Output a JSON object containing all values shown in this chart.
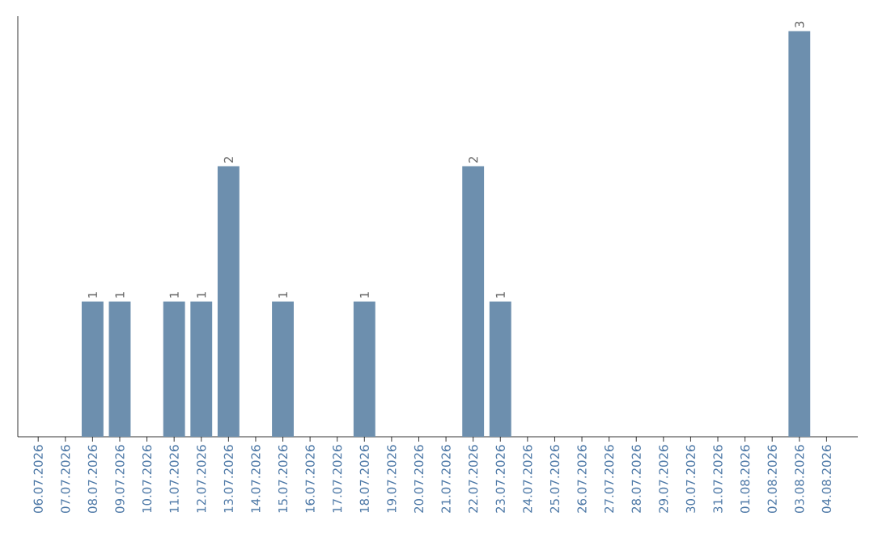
{
  "chart_data": {
    "type": "bar",
    "categories": [
      "06.07.2026",
      "07.07.2026",
      "08.07.2026",
      "09.07.2026",
      "10.07.2026",
      "11.07.2026",
      "12.07.2026",
      "13.07.2026",
      "14.07.2026",
      "15.07.2026",
      "16.07.2026",
      "17.07.2026",
      "18.07.2026",
      "19.07.2026",
      "20.07.2026",
      "21.07.2026",
      "22.07.2026",
      "23.07.2026",
      "24.07.2026",
      "25.07.2026",
      "26.07.2026",
      "27.07.2026",
      "28.07.2026",
      "29.07.2026",
      "30.07.2026",
      "31.07.2026",
      "01.08.2026",
      "02.08.2026",
      "03.08.2026",
      "04.08.2026"
    ],
    "values": [
      0,
      0,
      1,
      1,
      0,
      1,
      1,
      2,
      0,
      1,
      0,
      0,
      1,
      0,
      0,
      0,
      2,
      1,
      0,
      0,
      0,
      0,
      0,
      0,
      0,
      0,
      0,
      0,
      3,
      0
    ],
    "value_labels": [
      null,
      null,
      "1",
      "1",
      null,
      "1",
      "1",
      "2",
      null,
      "1",
      null,
      null,
      "1",
      null,
      null,
      null,
      "2",
      "1",
      null,
      null,
      null,
      null,
      null,
      null,
      null,
      null,
      null,
      null,
      "3",
      null
    ],
    "color": "#6d8fae",
    "tick_labels": "x"
  }
}
